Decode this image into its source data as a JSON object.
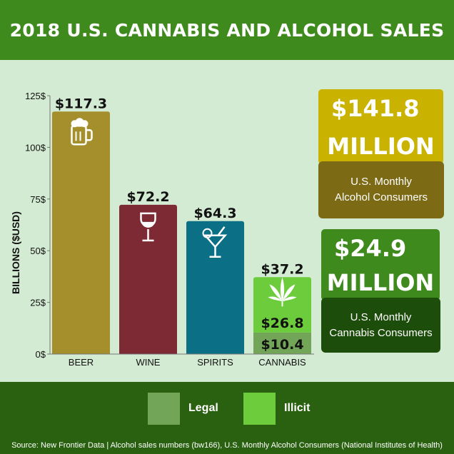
{
  "title": "2018 U.S. CANNABIS AND ALCOHOL SALES",
  "chart_data": {
    "type": "bar",
    "ylabel": "BILLIONS ($USD)",
    "ylim": [
      0,
      125
    ],
    "yticks": [
      0,
      25,
      50,
      75,
      100,
      125
    ],
    "ytick_labels": [
      "0$",
      "25$",
      "50$",
      "75$",
      "100$",
      "125$"
    ],
    "categories": [
      "BEER",
      "WINE",
      "SPIRITS",
      "CANNABIS"
    ],
    "values": [
      117.3,
      72.2,
      64.3,
      37.2
    ],
    "value_labels": [
      "$117.3",
      "$72.2",
      "$64.3",
      "$37.2"
    ],
    "icons": [
      "beer-mug-icon",
      "wine-glass-icon",
      "cocktail-glass-icon",
      "cannabis-leaf-icon"
    ],
    "colors": [
      "#a58f2c",
      "#7e2a35",
      "#0b6f86",
      "#6ccc3c"
    ],
    "cannabis_breakdown": [
      {
        "name": "Legal",
        "value": 10.4,
        "label": "$10.4",
        "color": "#72a557"
      },
      {
        "name": "Illicit",
        "value": 26.8,
        "label": "$26.8",
        "color": "#6ccc3c"
      }
    ]
  },
  "stats": {
    "alcohol": {
      "line1": "$141.8",
      "line2": "MILLION",
      "label_line1": "U.S. Monthly",
      "label_line2": "Alcohol Consumers"
    },
    "cannabis": {
      "line1": "$24.9",
      "line2": "MILLION",
      "label_line1": "U.S. Monthly",
      "label_line2": "Cannabis Consumers"
    }
  },
  "legend": {
    "legal": "Legal",
    "illicit": "Illicit",
    "legal_color": "#72a557",
    "illicit_color": "#6ccc3c"
  },
  "source": "Source: New Frontier Data | Alcohol sales numbers (bw166), U.S. Monthly Alcohol Consumers (National Institutes of Health)"
}
